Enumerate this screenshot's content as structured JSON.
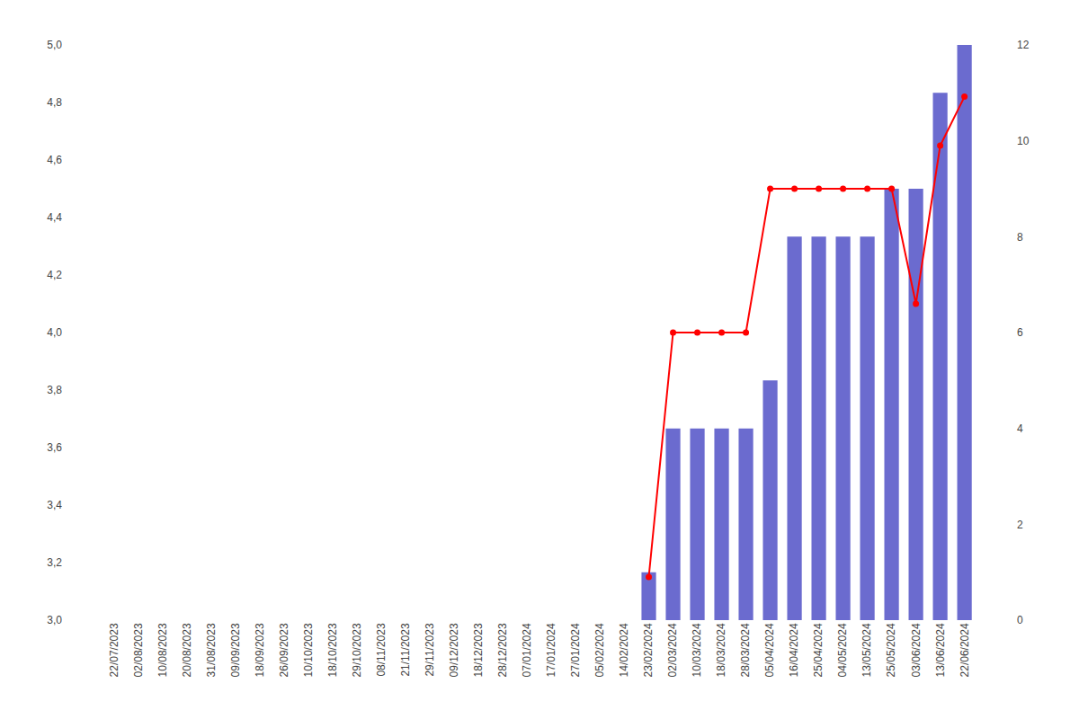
{
  "chart_data": {
    "type": "bar",
    "categories": [
      "22/07/2023",
      "02/08/2023",
      "10/08/2023",
      "20/08/2023",
      "31/08/2023",
      "09/09/2023",
      "18/09/2023",
      "26/09/2023",
      "10/10/2023",
      "18/10/2023",
      "29/10/2023",
      "08/11/2023",
      "21/11/2023",
      "29/11/2023",
      "09/12/2023",
      "18/12/2023",
      "28/12/2023",
      "07/01/2024",
      "17/01/2024",
      "27/01/2024",
      "05/02/2024",
      "14/02/2024",
      "23/02/2024",
      "02/03/2024",
      "10/03/2024",
      "18/03/2024",
      "28/03/2024",
      "05/04/2024",
      "16/04/2024",
      "25/04/2024",
      "04/05/2024",
      "13/05/2024",
      "25/05/2024",
      "03/06/2024",
      "13/06/2024",
      "22/06/2024"
    ],
    "series": [
      {
        "type": "bar",
        "axis": "y2",
        "color": "#6b6bcf",
        "values": [
          0,
          0,
          0,
          0,
          0,
          0,
          0,
          0,
          0,
          0,
          0,
          0,
          0,
          0,
          0,
          0,
          0,
          0,
          0,
          0,
          0,
          0,
          1,
          4,
          4,
          4,
          4,
          5,
          8,
          8,
          8,
          8,
          9,
          9,
          11,
          12
        ]
      },
      {
        "type": "line",
        "color": "#ff0000",
        "marker": "circle",
        "values": [
          null,
          null,
          null,
          null,
          null,
          null,
          null,
          null,
          null,
          null,
          null,
          null,
          null,
          null,
          null,
          null,
          null,
          null,
          null,
          null,
          null,
          null,
          3.15,
          4.0,
          4.0,
          4.0,
          4.0,
          4.5,
          4.5,
          4.5,
          4.5,
          4.5,
          4.5,
          4.1,
          4.65,
          4.82
        ]
      }
    ],
    "ylim": [
      3.0,
      5.0
    ],
    "yticks": [
      {
        "value": 3.0,
        "label": "3,0"
      },
      {
        "value": 3.2,
        "label": "3,2"
      },
      {
        "value": 3.4,
        "label": "3,4"
      },
      {
        "value": 3.6,
        "label": "3,6"
      },
      {
        "value": 3.8,
        "label": "3,8"
      },
      {
        "value": 4.0,
        "label": "4,0"
      },
      {
        "value": 4.2,
        "label": "4,2"
      },
      {
        "value": 4.4,
        "label": "4,4"
      },
      {
        "value": 4.6,
        "label": "4,6"
      },
      {
        "value": 4.8,
        "label": "4,8"
      },
      {
        "value": 5.0,
        "label": "5,0"
      }
    ],
    "y2lim": [
      0,
      12
    ],
    "y2ticks": [
      0,
      2,
      4,
      6,
      8,
      10,
      12
    ],
    "grid": false
  }
}
